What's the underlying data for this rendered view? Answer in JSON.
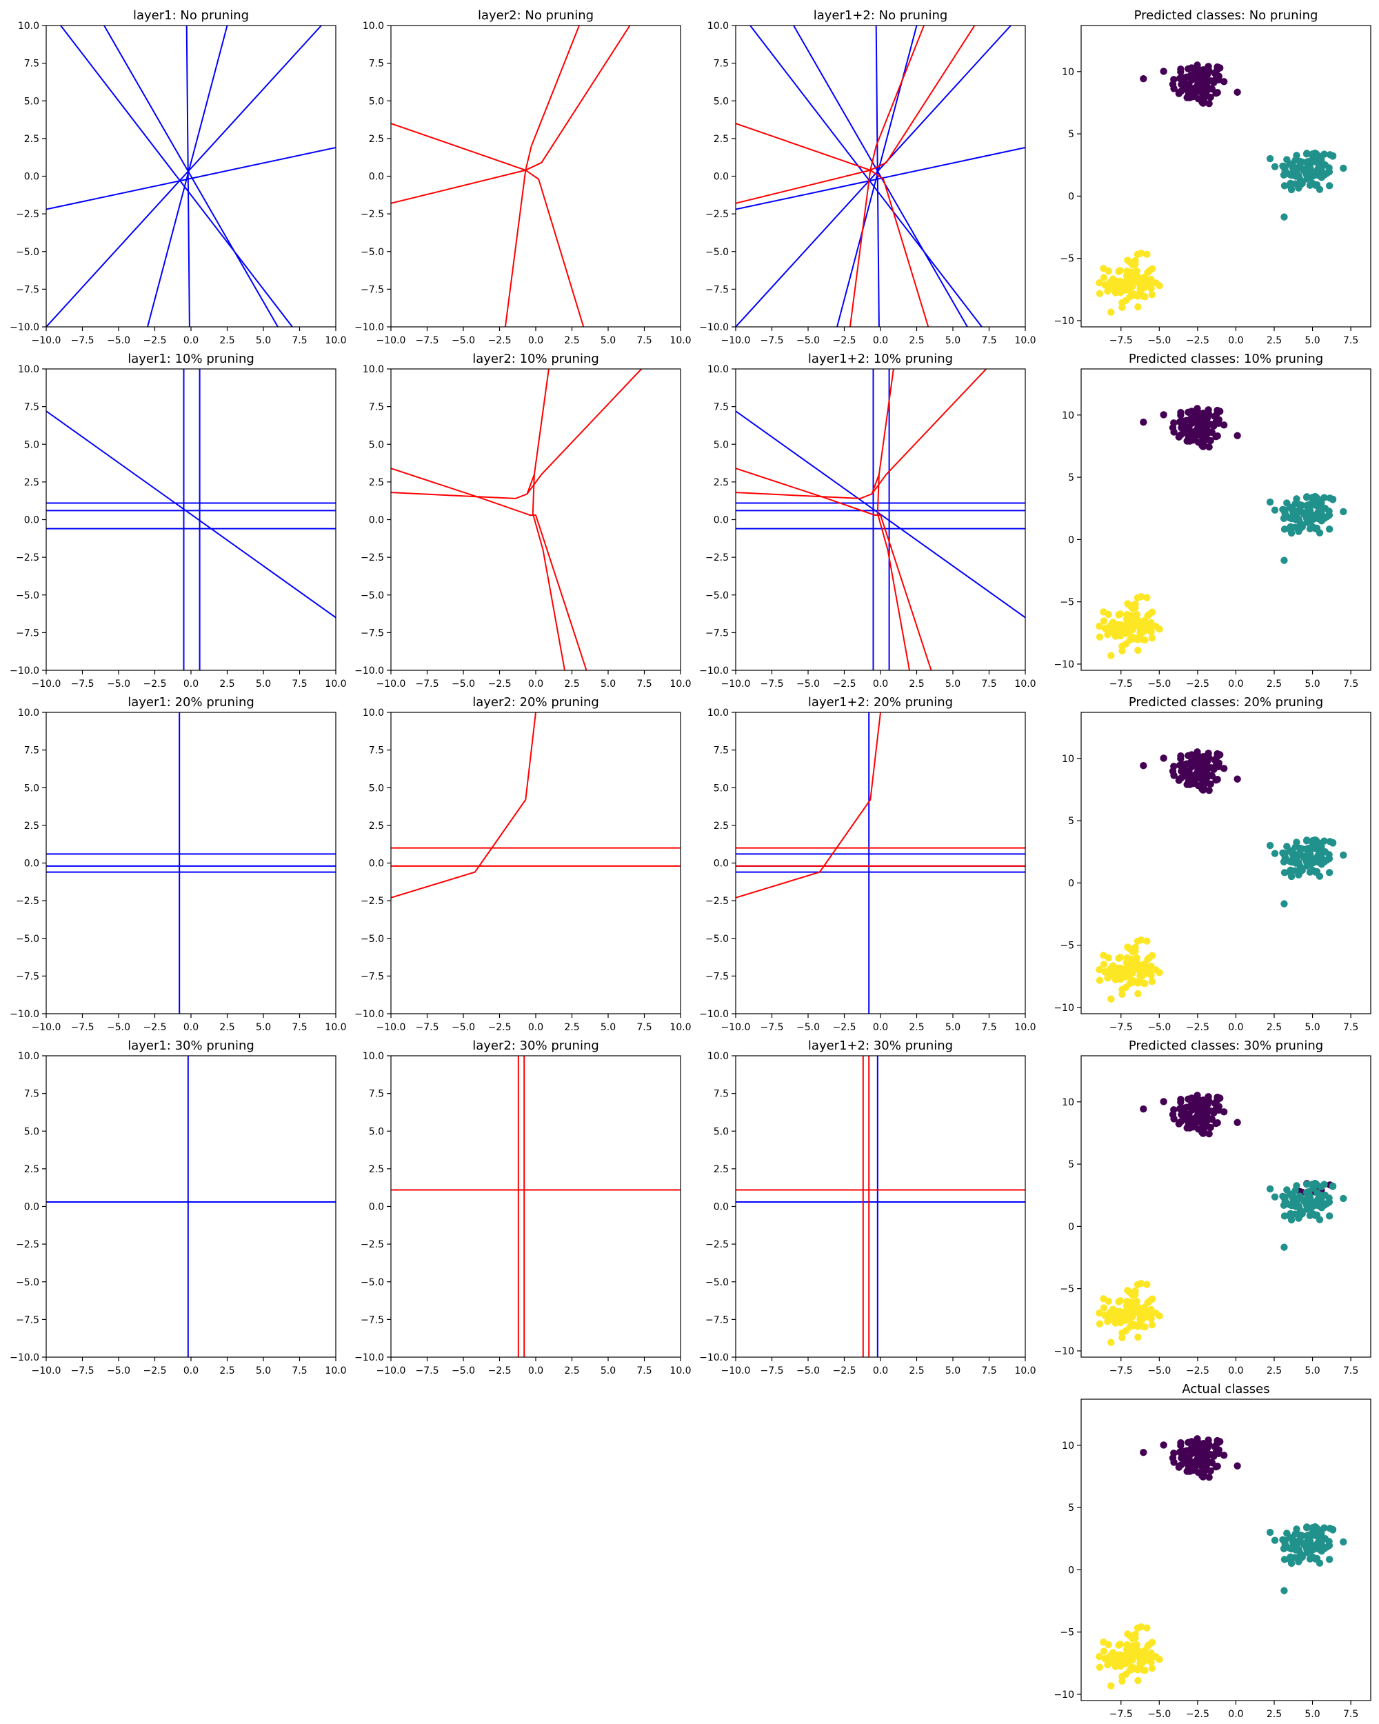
{
  "colors": {
    "layer1": "#0000ff",
    "layer2": "#ff0000",
    "class0": "#440154",
    "class1": "#21918c",
    "class2": "#fde725"
  },
  "line_axes": {
    "xlim": [
      -10,
      10
    ],
    "ylim": [
      -10,
      10
    ],
    "ticks": [
      -10,
      -7.5,
      -5,
      -2.5,
      0,
      2.5,
      5,
      7.5,
      10
    ],
    "tick_labels": [
      "−10.0",
      "−7.5",
      "−5.0",
      "−2.5",
      "0.0",
      "2.5",
      "5.0",
      "7.5",
      "10.0"
    ]
  },
  "scatter_axes": {
    "xlim": [
      -10.1,
      8.8
    ],
    "ylim": [
      -10.5,
      13.7
    ],
    "xticks": [
      -7.5,
      -5,
      -2.5,
      0,
      2.5,
      5,
      7.5
    ],
    "xtick_labels": [
      "−7.5",
      "−5.0",
      "−2.5",
      "0.0",
      "2.5",
      "5.0",
      "7.5"
    ],
    "yticks": [
      -10,
      -5,
      0,
      5,
      10
    ],
    "ytick_labels": [
      "−10",
      "−5",
      "0",
      "5",
      "10"
    ]
  },
  "chart_data": [
    {
      "type": "line",
      "title": "layer1: No pruning",
      "series": [
        {
          "color": "blue",
          "segments": [
            [
              [
                -10.0,
                -2.2
              ],
              [
                10.0,
                1.9
              ]
            ],
            [
              [
                -0.3,
                10.0
              ],
              [
                -0.1,
                -10.0
              ]
            ],
            [
              [
                -9.0,
                10.0
              ],
              [
                7.0,
                -10.0
              ]
            ],
            [
              [
                -6.0,
                10.0
              ],
              [
                6.0,
                -10.0
              ]
            ],
            [
              [
                2.5,
                10.0
              ],
              [
                -3.0,
                -10.0
              ]
            ],
            [
              [
                9.0,
                10.0
              ],
              [
                -10.0,
                -10.0
              ]
            ]
          ]
        }
      ]
    },
    {
      "type": "line",
      "title": "layer2: No pruning",
      "series": [
        {
          "color": "red",
          "segments": [
            [
              [
                -10.0,
                3.5
              ],
              [
                -0.7,
                0.4
              ],
              [
                -2.1,
                -10.0
              ]
            ],
            [
              [
                -10.0,
                -1.8
              ],
              [
                -0.7,
                0.4
              ],
              [
                0.4,
                0.9
              ],
              [
                6.5,
                10.0
              ]
            ],
            [
              [
                -0.7,
                0.4
              ],
              [
                -0.3,
                2.0
              ],
              [
                3.0,
                10.0
              ]
            ],
            [
              [
                -0.7,
                0.4
              ],
              [
                0.2,
                -0.2
              ],
              [
                3.3,
                -10.0
              ]
            ]
          ]
        }
      ]
    },
    {
      "type": "line",
      "title": "layer1+2: No pruning",
      "series": [
        {
          "color": "blue",
          "segments": [
            [
              [
                -10.0,
                -2.2
              ],
              [
                10.0,
                1.9
              ]
            ],
            [
              [
                -0.3,
                10.0
              ],
              [
                -0.1,
                -10.0
              ]
            ],
            [
              [
                -9.0,
                10.0
              ],
              [
                7.0,
                -10.0
              ]
            ],
            [
              [
                -6.0,
                10.0
              ],
              [
                6.0,
                -10.0
              ]
            ],
            [
              [
                2.5,
                10.0
              ],
              [
                -3.0,
                -10.0
              ]
            ],
            [
              [
                9.0,
                10.0
              ],
              [
                -10.0,
                -10.0
              ]
            ]
          ]
        },
        {
          "color": "red",
          "segments": [
            [
              [
                -10.0,
                3.5
              ],
              [
                -0.7,
                0.4
              ],
              [
                -2.1,
                -10.0
              ]
            ],
            [
              [
                -10.0,
                -1.8
              ],
              [
                -0.7,
                0.4
              ],
              [
                0.4,
                0.9
              ],
              [
                6.5,
                10.0
              ]
            ],
            [
              [
                -0.7,
                0.4
              ],
              [
                -0.3,
                2.0
              ],
              [
                3.0,
                10.0
              ]
            ],
            [
              [
                -0.7,
                0.4
              ],
              [
                0.2,
                -0.2
              ],
              [
                3.3,
                -10.0
              ]
            ]
          ]
        }
      ]
    },
    {
      "type": "scatter",
      "title": "Predicted classes: No pruning",
      "misassigned": 0
    },
    {
      "type": "line",
      "title": "layer1: 10% pruning",
      "series": [
        {
          "color": "blue",
          "segments": [
            [
              [
                -0.5,
                10.0
              ],
              [
                -0.5,
                -10.0
              ]
            ],
            [
              [
                0.6,
                10.0
              ],
              [
                0.6,
                -10.0
              ]
            ],
            [
              [
                -10.0,
                1.1
              ],
              [
                10.0,
                1.1
              ]
            ],
            [
              [
                -10.0,
                0.6
              ],
              [
                10.0,
                0.6
              ]
            ],
            [
              [
                -10.0,
                -0.6
              ],
              [
                10.0,
                -0.6
              ]
            ],
            [
              [
                -10.0,
                7.2
              ],
              [
                10.0,
                -6.5
              ]
            ]
          ]
        }
      ]
    },
    {
      "type": "line",
      "title": "layer2: 10% pruning",
      "series": [
        {
          "color": "red",
          "segments": [
            [
              [
                -10.0,
                3.4
              ],
              [
                -4.0,
                1.5
              ],
              [
                -0.4,
                0.3
              ],
              [
                0.0,
                0.3
              ],
              [
                3.5,
                -10.0
              ]
            ],
            [
              [
                -10.0,
                1.8
              ],
              [
                -1.4,
                1.4
              ],
              [
                -0.6,
                1.7
              ],
              [
                0.4,
                3.0
              ],
              [
                7.3,
                10.0
              ]
            ],
            [
              [
                -0.6,
                1.7
              ],
              [
                -0.1,
                3.0
              ],
              [
                0.9,
                10.0
              ]
            ],
            [
              [
                -0.1,
                3.0
              ],
              [
                -0.2,
                0.4
              ],
              [
                0.5,
                -2.0
              ],
              [
                2.0,
                -10.0
              ]
            ]
          ]
        }
      ]
    },
    {
      "type": "line",
      "title": "layer1+2: 10% pruning",
      "series": [
        {
          "color": "blue",
          "segments": [
            [
              [
                -0.5,
                10.0
              ],
              [
                -0.5,
                -10.0
              ]
            ],
            [
              [
                0.6,
                10.0
              ],
              [
                0.6,
                -10.0
              ]
            ],
            [
              [
                -10.0,
                1.1
              ],
              [
                10.0,
                1.1
              ]
            ],
            [
              [
                -10.0,
                0.6
              ],
              [
                10.0,
                0.6
              ]
            ],
            [
              [
                -10.0,
                -0.6
              ],
              [
                10.0,
                -0.6
              ]
            ],
            [
              [
                -10.0,
                7.2
              ],
              [
                10.0,
                -6.5
              ]
            ]
          ]
        },
        {
          "color": "red",
          "segments": [
            [
              [
                -10.0,
                3.4
              ],
              [
                -4.0,
                1.5
              ],
              [
                -0.4,
                0.3
              ],
              [
                0.0,
                0.3
              ],
              [
                3.5,
                -10.0
              ]
            ],
            [
              [
                -10.0,
                1.8
              ],
              [
                -1.4,
                1.4
              ],
              [
                -0.6,
                1.7
              ],
              [
                0.4,
                3.0
              ],
              [
                7.3,
                10.0
              ]
            ],
            [
              [
                -0.6,
                1.7
              ],
              [
                -0.1,
                3.0
              ],
              [
                0.9,
                10.0
              ]
            ],
            [
              [
                -0.1,
                3.0
              ],
              [
                -0.2,
                0.4
              ],
              [
                0.5,
                -2.0
              ],
              [
                2.0,
                -10.0
              ]
            ]
          ]
        }
      ]
    },
    {
      "type": "scatter",
      "title": "Predicted classes: 10% pruning",
      "misassigned": 0
    },
    {
      "type": "line",
      "title": "layer1: 20% pruning",
      "series": [
        {
          "color": "blue",
          "segments": [
            [
              [
                -0.8,
                10.0
              ],
              [
                -0.8,
                -10.0
              ]
            ],
            [
              [
                -10.0,
                0.6
              ],
              [
                10.0,
                0.6
              ]
            ],
            [
              [
                -10.0,
                -0.2
              ],
              [
                10.0,
                -0.2
              ]
            ],
            [
              [
                -10.0,
                -0.6
              ],
              [
                10.0,
                -0.6
              ]
            ]
          ]
        }
      ]
    },
    {
      "type": "line",
      "title": "layer2: 20% pruning",
      "series": [
        {
          "color": "red",
          "segments": [
            [
              [
                -10.0,
                1.0
              ],
              [
                10.0,
                1.0
              ]
            ],
            [
              [
                -10.0,
                -0.2
              ],
              [
                10.0,
                -0.2
              ]
            ],
            [
              [
                -10.0,
                -2.3
              ],
              [
                -4.2,
                -0.6
              ],
              [
                -0.7,
                4.2
              ],
              [
                0.0,
                10.0
              ]
            ]
          ]
        }
      ]
    },
    {
      "type": "line",
      "title": "layer1+2: 20% pruning",
      "series": [
        {
          "color": "blue",
          "segments": [
            [
              [
                -0.8,
                10.0
              ],
              [
                -0.8,
                -10.0
              ]
            ],
            [
              [
                -10.0,
                0.6
              ],
              [
                10.0,
                0.6
              ]
            ],
            [
              [
                -10.0,
                -0.2
              ],
              [
                10.0,
                -0.2
              ]
            ],
            [
              [
                -10.0,
                -0.6
              ],
              [
                10.0,
                -0.6
              ]
            ]
          ]
        },
        {
          "color": "red",
          "segments": [
            [
              [
                -10.0,
                1.0
              ],
              [
                10.0,
                1.0
              ]
            ],
            [
              [
                -10.0,
                -0.2
              ],
              [
                10.0,
                -0.2
              ]
            ],
            [
              [
                -10.0,
                -2.3
              ],
              [
                -4.2,
                -0.6
              ],
              [
                -0.7,
                4.2
              ],
              [
                0.0,
                10.0
              ]
            ]
          ]
        }
      ]
    },
    {
      "type": "scatter",
      "title": "Predicted classes: 20% pruning",
      "misassigned": 0
    },
    {
      "type": "line",
      "title": "layer1: 30% pruning",
      "series": [
        {
          "color": "blue",
          "segments": [
            [
              [
                -0.2,
                10.0
              ],
              [
                -0.2,
                -10.0
              ]
            ],
            [
              [
                -10.0,
                0.3
              ],
              [
                10.0,
                0.3
              ]
            ]
          ]
        }
      ]
    },
    {
      "type": "line",
      "title": "layer2: 30% pruning",
      "series": [
        {
          "color": "red",
          "segments": [
            [
              [
                -1.2,
                10.0
              ],
              [
                -1.2,
                -10.0
              ]
            ],
            [
              [
                -0.8,
                10.0
              ],
              [
                -0.8,
                -10.0
              ]
            ],
            [
              [
                -10.0,
                1.1
              ],
              [
                10.0,
                1.1
              ]
            ]
          ]
        }
      ]
    },
    {
      "type": "line",
      "title": "layer1+2: 30% pruning",
      "series": [
        {
          "color": "blue",
          "segments": [
            [
              [
                -0.2,
                10.0
              ],
              [
                -0.2,
                -10.0
              ]
            ],
            [
              [
                -10.0,
                0.3
              ],
              [
                10.0,
                0.3
              ]
            ]
          ]
        },
        {
          "color": "red",
          "segments": [
            [
              [
                -1.2,
                10.0
              ],
              [
                -1.2,
                -10.0
              ]
            ],
            [
              [
                -0.8,
                10.0
              ],
              [
                -0.8,
                -10.0
              ]
            ],
            [
              [
                -10.0,
                1.1
              ],
              [
                10.0,
                1.1
              ]
            ]
          ]
        }
      ]
    },
    {
      "type": "scatter",
      "title": "Predicted classes: 30% pruning",
      "misassigned": 10
    },
    {
      "type": "scatter",
      "title": "Actual classes",
      "misassigned": 0
    }
  ],
  "clusters": [
    {
      "class": 0,
      "center": [
        -2.4,
        9.0
      ],
      "spread": [
        0.9,
        0.9
      ],
      "count": 100
    },
    {
      "class": 1,
      "center": [
        4.7,
        2.1
      ],
      "spread": [
        1.0,
        0.9
      ],
      "count": 100
    },
    {
      "class": 2,
      "center": [
        -6.9,
        -7.0
      ],
      "spread": [
        0.8,
        1.0
      ],
      "count": 100
    }
  ]
}
